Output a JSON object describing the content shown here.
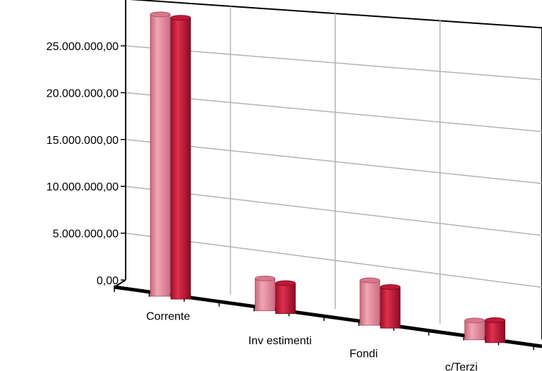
{
  "chart_data": {
    "type": "bar",
    "title": "",
    "xlabel": "",
    "ylabel": "",
    "categories": [
      "Corrente",
      "Inv estimenti",
      "Fondi",
      "c/Terzi"
    ],
    "series": [
      {
        "values": [
          29000000,
          2600000,
          3800000,
          1200000
        ],
        "color": "#d9788e"
      },
      {
        "values": [
          28800000,
          2400000,
          3400000,
          1500000
        ],
        "color": "#c0183a"
      }
    ],
    "y_ticks": [
      {
        "value": 0,
        "label": "0,00"
      },
      {
        "value": 5000000,
        "label": "5.000.000,00"
      },
      {
        "value": 10000000,
        "label": "10.000.000,00"
      },
      {
        "value": 15000000,
        "label": "15.000.000,00"
      },
      {
        "value": 20000000,
        "label": "20.000.000,00"
      },
      {
        "value": 25000000,
        "label": "25.000.000,00"
      }
    ],
    "ylim": [
      0,
      30000000
    ],
    "grid": true,
    "legend": "none"
  }
}
